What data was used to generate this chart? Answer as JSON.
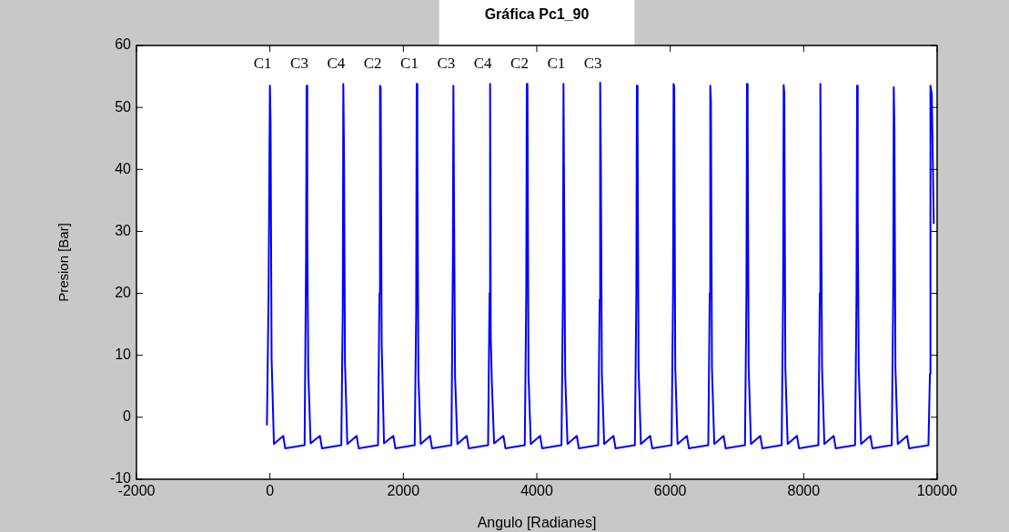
{
  "chart_data": {
    "type": "line",
    "title": "Gráfica Pc1_90",
    "xlabel": "Angulo [Radianes]",
    "ylabel": "Presion [Bar]",
    "xlim": [
      -2000,
      10000
    ],
    "xticks": [
      -2000,
      0,
      2000,
      4000,
      6000,
      8000,
      10000
    ],
    "ylim": [
      -10,
      60
    ],
    "yticks": [
      -10,
      0,
      10,
      20,
      30,
      40,
      50,
      60
    ],
    "series": [
      {
        "color": "#0000ff",
        "x": [
          -45,
          -20,
          0,
          10,
          25,
          60,
          200,
          230,
          520,
          542,
          550,
          560,
          575,
          610,
          750,
          780,
          1070,
          1092,
          1100,
          1110,
          1125,
          1160,
          1300,
          1330,
          1620,
          1642,
          1650,
          1660,
          1675,
          1710,
          1850,
          1880,
          2170,
          2192,
          2200,
          2210,
          2225,
          2260,
          2400,
          2430,
          2720,
          2742,
          2750,
          2760,
          2775,
          2810,
          2950,
          2980,
          3270,
          3292,
          3300,
          3310,
          3325,
          3360,
          3500,
          3530,
          3820,
          3842,
          3850,
          3860,
          3875,
          3910,
          4050,
          4080,
          4370,
          4392,
          4400,
          4410,
          4425,
          4460,
          4600,
          4630,
          4920,
          4942,
          4950,
          4960,
          4975,
          5010,
          5150,
          5180,
          5470,
          5492,
          5500,
          5510,
          5525,
          5560,
          5700,
          5730,
          6020,
          6042,
          6050,
          6060,
          6075,
          6110,
          6250,
          6280,
          6570,
          6592,
          6600,
          6610,
          6625,
          6660,
          6800,
          6830,
          7120,
          7142,
          7150,
          7160,
          7175,
          7210,
          7350,
          7380,
          7670,
          7692,
          7700,
          7710,
          7725,
          7760,
          7900,
          7930,
          8220,
          8242,
          8250,
          8260,
          8275,
          8310,
          8450,
          8480,
          8770,
          8792,
          8800,
          8810,
          8825,
          8860,
          9000,
          9030,
          9320,
          9342,
          9350,
          9360,
          9375,
          9410,
          9550,
          9580,
          9870,
          9892,
          9900,
          9920,
          9950
        ],
        "values": [
          -1.3,
          19.8,
          53.5,
          47.6,
          9.5,
          -4.3,
          -3,
          -5,
          -4.5,
          25.8,
          53.5,
          29.7,
          7.3,
          -4.2,
          -3,
          -5,
          -4.5,
          17.5,
          53.8,
          43.5,
          9,
          -4.3,
          -3,
          -5,
          -4.5,
          20,
          53.5,
          53.2,
          11.9,
          -4.2,
          -3,
          -5,
          -4.5,
          17,
          53.8,
          43.6,
          7,
          -4.3,
          -3,
          -5,
          -4.5,
          25,
          53.5,
          33.5,
          6.5,
          -4.3,
          -3,
          -5,
          -4.5,
          20,
          53.8,
          13.2,
          6,
          -4.2,
          -3,
          -5,
          -4.5,
          20,
          53.8,
          53.3,
          7,
          -4.3,
          -3,
          -5,
          -4.5,
          20,
          53.8,
          34.5,
          7,
          -4.3,
          -3,
          -5,
          -4.5,
          19,
          54,
          41.7,
          7,
          -4.3,
          -3,
          -5,
          -4.5,
          20,
          53.5,
          47.6,
          8,
          -4.3,
          -3,
          -5,
          -4.5,
          20,
          53.8,
          53.3,
          8,
          -4.3,
          -3,
          -5,
          -4.5,
          20,
          53.5,
          51,
          8,
          -4.3,
          -3,
          -5,
          -4.5,
          20,
          53.8,
          47.6,
          8,
          -4.3,
          -3,
          -5,
          -4.5,
          20,
          53.6,
          52.3,
          8,
          -4.3,
          -3,
          -5,
          -4.5,
          20,
          53.8,
          38.1,
          8,
          -4.3,
          -3,
          -5,
          -4.5,
          20,
          53.5,
          32.6,
          8,
          -4.3,
          -3,
          -5,
          -4.5,
          20,
          53.3,
          46.6,
          8,
          -4.3,
          -3,
          -5,
          -4.5,
          7,
          53.5,
          52.1,
          31.2
        ]
      }
    ],
    "annotations": [
      "C1",
      "C3",
      "C4",
      "C2",
      "C1",
      "C3",
      "C4",
      "C2",
      "C1",
      "C3"
    ]
  }
}
